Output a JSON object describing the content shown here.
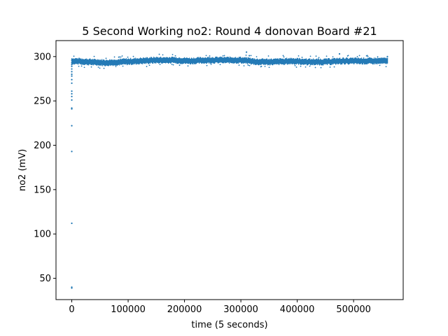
{
  "chart_data": {
    "type": "scatter",
    "title": "5 Second Working no2: Round 4 donovan Board #21",
    "xlabel": "time (5 seconds)",
    "ylabel": "no2 (mV)",
    "xlim": [
      -28000,
      588000
    ],
    "ylim": [
      26,
      318
    ],
    "x_ticks": [
      0,
      100000,
      200000,
      300000,
      400000,
      500000
    ],
    "x_tick_labels": [
      "0",
      "100000",
      "200000",
      "300000",
      "400000",
      "500000"
    ],
    "y_ticks": [
      50,
      100,
      150,
      200,
      250,
      300
    ],
    "y_tick_labels": [
      "50",
      "100",
      "150",
      "200",
      "250",
      "300"
    ],
    "grid": false,
    "series": [
      {
        "color": "#1f77b4",
        "marker": "dot",
        "points": [
          [
            0,
            39
          ],
          [
            0,
            40
          ],
          [
            0,
            112
          ],
          [
            0,
            193
          ],
          [
            0,
            222
          ],
          [
            0,
            241
          ],
          [
            0,
            242
          ],
          [
            0,
            251
          ],
          [
            0,
            255
          ],
          [
            0,
            258
          ],
          [
            0,
            261
          ],
          [
            0,
            270
          ],
          [
            0,
            274
          ],
          [
            0,
            278
          ],
          [
            0,
            280
          ],
          [
            0,
            283
          ],
          [
            0,
            286
          ],
          [
            0,
            289
          ],
          [
            0,
            291
          ],
          [
            0,
            293
          ],
          [
            0,
            296
          ],
          [
            310000,
            305
          ],
          [
            315000,
            301
          ],
          [
            475000,
            303
          ],
          [
            560000,
            300
          ]
        ],
        "band": {
          "x_start": 0,
          "x_end": 561000,
          "center_mv": [
            [
              0,
              295
            ],
            [
              30000,
              294
            ],
            [
              60000,
              293
            ],
            [
              90000,
              294
            ],
            [
              120000,
              295
            ],
            [
              150000,
              296
            ],
            [
              180000,
              296
            ],
            [
              210000,
              295
            ],
            [
              240000,
              296
            ],
            [
              270000,
              296
            ],
            [
              300000,
              296
            ],
            [
              330000,
              294
            ],
            [
              360000,
              294
            ],
            [
              390000,
              295
            ],
            [
              420000,
              294
            ],
            [
              450000,
              294
            ],
            [
              480000,
              295
            ],
            [
              510000,
              295
            ],
            [
              540000,
              295
            ],
            [
              561000,
              295
            ]
          ],
          "half_width_mv": 3.2
        }
      }
    ]
  }
}
